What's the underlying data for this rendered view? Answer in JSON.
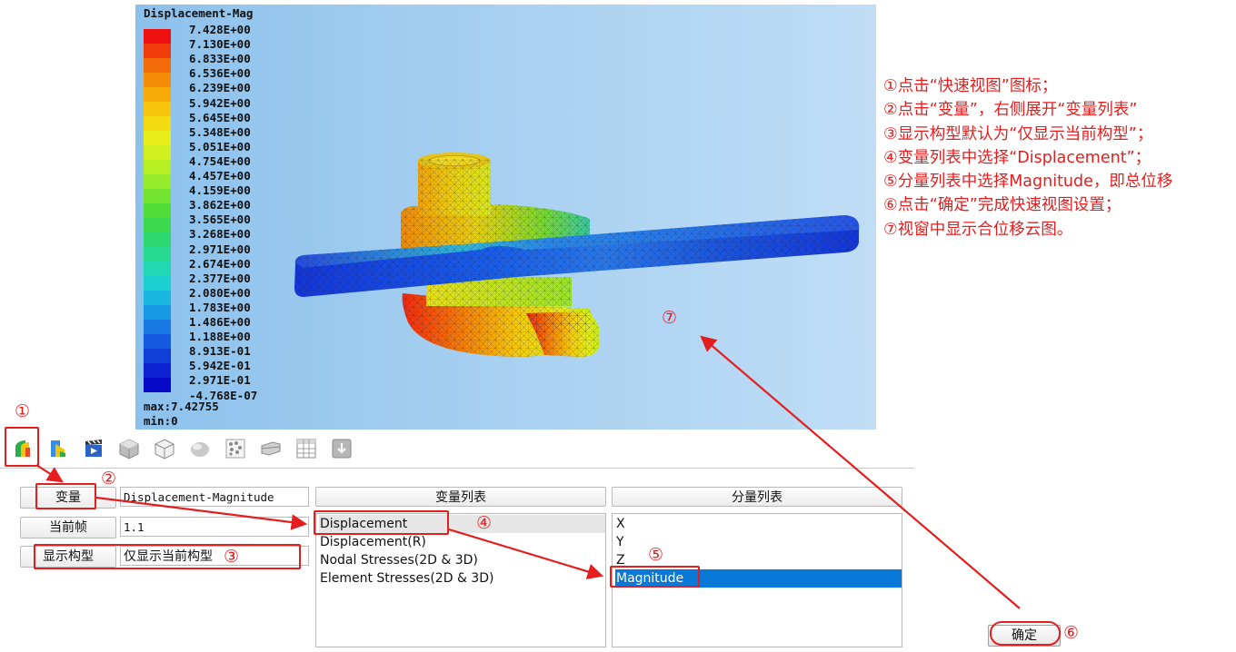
{
  "legend": {
    "title": "Displacement-Mag",
    "values": [
      "7.428E+00",
      "7.130E+00",
      "6.833E+00",
      "6.536E+00",
      "6.239E+00",
      "5.942E+00",
      "5.645E+00",
      "5.348E+00",
      "5.051E+00",
      "4.754E+00",
      "4.457E+00",
      "4.159E+00",
      "3.862E+00",
      "3.565E+00",
      "3.268E+00",
      "2.971E+00",
      "2.674E+00",
      "2.377E+00",
      "2.080E+00",
      "1.783E+00",
      "1.486E+00",
      "1.188E+00",
      "8.913E-01",
      "5.942E-01",
      "2.971E-01",
      "-4.768E-07"
    ],
    "colors": [
      "#ee1010",
      "#f03c0a",
      "#f36a08",
      "#f48c08",
      "#f6ab08",
      "#f7c50b",
      "#f5dc12",
      "#e9ee1b",
      "#d2f01f",
      "#b6f023",
      "#96ec2a",
      "#72e42f",
      "#52dc38",
      "#3cd84e",
      "#2ed870",
      "#27da92",
      "#22d8b2",
      "#1ccfd0",
      "#18b8e0",
      "#1899e4",
      "#1878e4",
      "#1459e0",
      "#103ed8",
      "#0c22d0",
      "#0808c8"
    ],
    "max": "max:7.42755",
    "min": "min:0"
  },
  "toolbar": {
    "icons": [
      "contour-icon",
      "contour-alt-icon",
      "animation-icon",
      "cube-solid-icon",
      "cube-wire-icon",
      "sphere-icon",
      "particles-icon",
      "section-icon",
      "table-icon",
      "export-icon"
    ]
  },
  "form": {
    "variable_label": "变量",
    "variable_value": "Displacement-Magnitude",
    "frame_label": "当前帧",
    "frame_value": "1.1",
    "config_label": "显示构型",
    "config_value": "仅显示当前构型"
  },
  "variable_list": {
    "header": "变量列表",
    "items": [
      "Displacement",
      "Displacement(R)",
      "Nodal Stresses(2D & 3D)",
      "Element Stresses(2D & 3D)"
    ]
  },
  "component_list": {
    "header": "分量列表",
    "items": [
      "X",
      "Y",
      "Z",
      "Magnitude"
    ]
  },
  "ok_label": "确定",
  "instructions": [
    "①点击“快速视图”图标；",
    "②点击“变量”，右侧展开“变量列表”",
    "③显示构型默认为“仅显示当前构型”；",
    "④变量列表中选择“Displacement”；",
    "⑤分量列表中选择Magnitude，即总位移",
    "⑥点击“确定”完成快速视图设置；",
    "⑦视窗中显示合位移云图。"
  ],
  "markers": [
    "①",
    "②",
    "③",
    "④",
    "⑤",
    "⑥",
    "⑦"
  ],
  "colors": {
    "annotation_red": "#e41e1e",
    "selection_blue": "#0a78d7"
  }
}
